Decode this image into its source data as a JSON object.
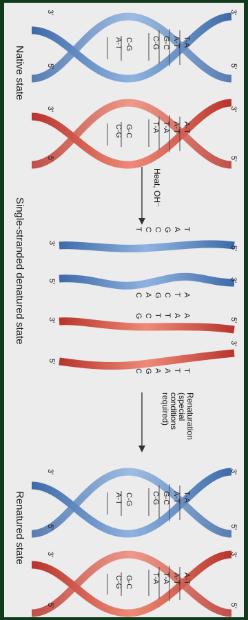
{
  "diagram": {
    "labels": {
      "native_state": "Native state",
      "single_stranded": "Single-stranded denatured state",
      "renatured_state": "Renatured state",
      "heat": "Heat, OH⁻",
      "renaturation": [
        "Renaturation",
        "(special",
        "conditions",
        "required)"
      ]
    },
    "end_labels": {
      "three_prime": "3'",
      "five_prime": "5'"
    },
    "colors": {
      "blue_strand": "#6f98cf",
      "blue_strand_dark": "#3e6aa8",
      "red_strand": "#d9564a",
      "red_strand_dark": "#b8342c",
      "background": "#ececec",
      "frame": "#0f3a1c"
    },
    "base_pairs": {
      "blue_duplex_top": [
        "T-A",
        "A-T",
        "G-C",
        "C-G"
      ],
      "blue_duplex_bottom": [
        "C-G",
        "A-T"
      ],
      "red_duplex_top": [
        "A-T",
        "A-T",
        "T-A",
        "T-A"
      ],
      "red_duplex_bottom": [
        "G-C",
        "C-G"
      ],
      "strand_1": [
        "T",
        "A",
        "G",
        "C",
        "C",
        "T"
      ],
      "strand_2": [
        "A",
        "T",
        "C",
        "G",
        "A",
        "C"
      ],
      "strand_3": [
        "A",
        "A",
        "T",
        "T",
        "C",
        "G"
      ],
      "strand_4": [
        "T",
        "T",
        "A",
        "A",
        "G",
        "C"
      ]
    }
  }
}
